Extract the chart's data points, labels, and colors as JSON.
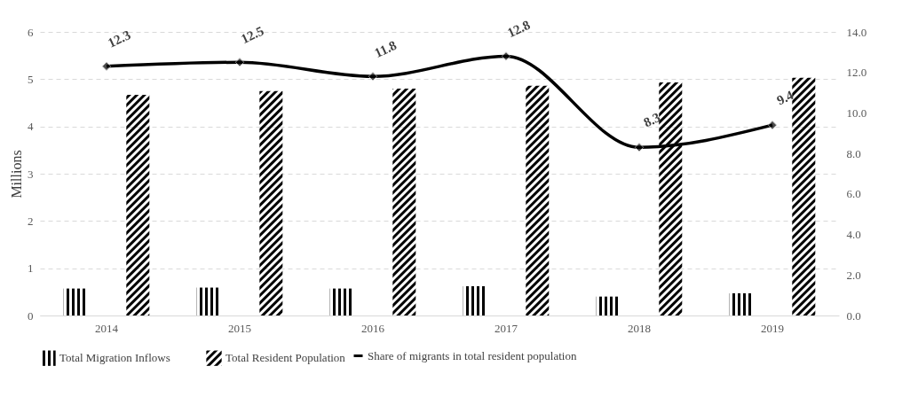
{
  "chart_data": {
    "type": "bar",
    "ylabel": "Millions",
    "categories": [
      "2014",
      "2015",
      "2016",
      "2017",
      "2018",
      "2019"
    ],
    "series": [
      {
        "name": "Total Migration Inflows",
        "color": "#000000",
        "values": [
          0.57,
          0.59,
          0.57,
          0.62,
          0.4,
          0.47
        ]
      },
      {
        "name": "Total Resident Population",
        "color": "#000000",
        "values": [
          4.67,
          4.75,
          4.8,
          4.86,
          4.93,
          5.03
        ]
      },
      {
        "name": "Share of migrants in total resident population",
        "type": "line",
        "axis": "y2",
        "color": "#000000",
        "marker": "diamond",
        "data_labels": true,
        "values": [
          12.3,
          12.5,
          11.8,
          12.8,
          8.3,
          9.4
        ]
      }
    ],
    "ylim": [
      0,
      6
    ],
    "yticks": [
      0,
      1,
      2,
      3,
      4,
      5,
      6
    ],
    "y2lim": [
      0,
      14
    ],
    "y2ticks": [
      {
        "value": 0,
        "label": "0.0"
      },
      {
        "value": 2,
        "label": "2.0"
      },
      {
        "value": 4,
        "label": "4.0"
      },
      {
        "value": 6,
        "label": "6.0"
      },
      {
        "value": 8,
        "label": "8.0"
      },
      {
        "value": 10,
        "label": "10.0"
      },
      {
        "value": 12,
        "label": "12.0"
      },
      {
        "value": 14,
        "label": "14.0"
      }
    ],
    "grid": "y",
    "legend": "bottom"
  }
}
